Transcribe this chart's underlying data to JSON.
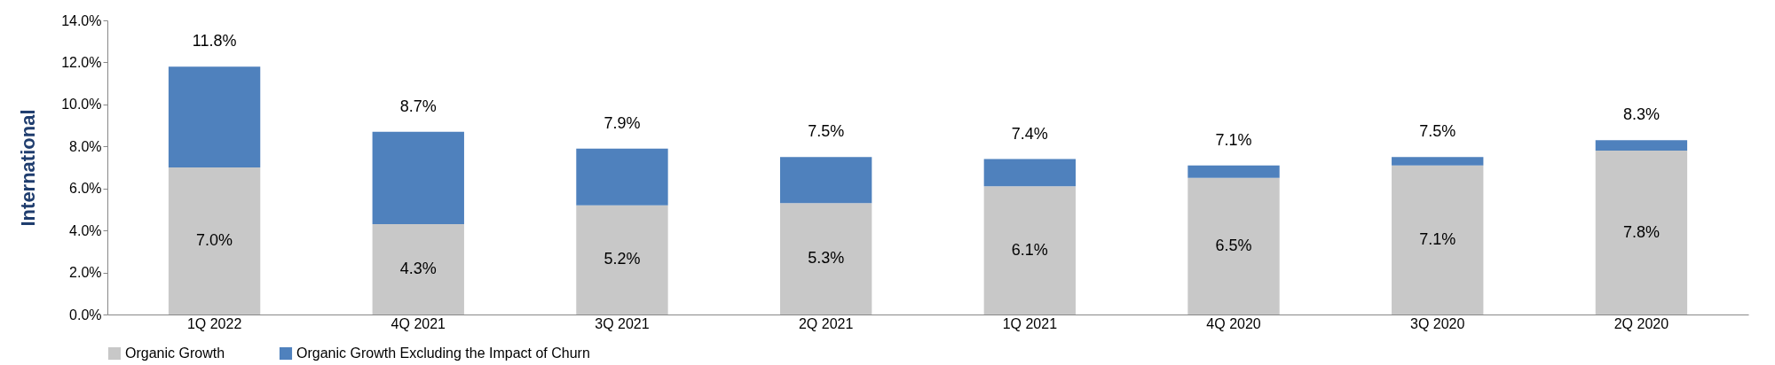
{
  "chart_data": {
    "type": "bar",
    "stacked": true,
    "ylabel": "International",
    "categories": [
      "1Q 2022",
      "4Q 2021",
      "3Q 2021",
      "2Q 2021",
      "1Q 2021",
      "4Q 2020",
      "3Q 2020",
      "2Q 2020"
    ],
    "series": [
      {
        "name": "Organic Growth",
        "color": "#c8c8c8",
        "values": [
          7.0,
          4.3,
          5.2,
          5.3,
          6.1,
          6.5,
          7.1,
          7.8
        ],
        "value_labels": [
          "7.0%",
          "4.3%",
          "5.2%",
          "5.3%",
          "6.1%",
          "6.5%",
          "7.1%",
          "7.8%"
        ]
      },
      {
        "name": "Organic Growth Excluding the Impact of Churn",
        "color": "#4f81bd",
        "values": [
          4.8,
          4.4,
          2.7,
          2.2,
          1.3,
          0.6,
          0.4,
          0.5
        ]
      }
    ],
    "totals": [
      "11.8%",
      "8.7%",
      "7.9%",
      "7.5%",
      "7.4%",
      "7.1%",
      "7.5%",
      "8.3%"
    ],
    "ylim": [
      0,
      14
    ],
    "yticks": [
      {
        "value": 0,
        "label": "0.0%"
      },
      {
        "value": 2,
        "label": "2.0%"
      },
      {
        "value": 4,
        "label": "4.0%"
      },
      {
        "value": 6,
        "label": "6.0%"
      },
      {
        "value": 8,
        "label": "8.0%"
      },
      {
        "value": 10,
        "label": "10.0%"
      },
      {
        "value": 12,
        "label": "12.0%"
      },
      {
        "value": 14,
        "label": "14.0%"
      }
    ],
    "grid": false,
    "legend": "bottom"
  }
}
